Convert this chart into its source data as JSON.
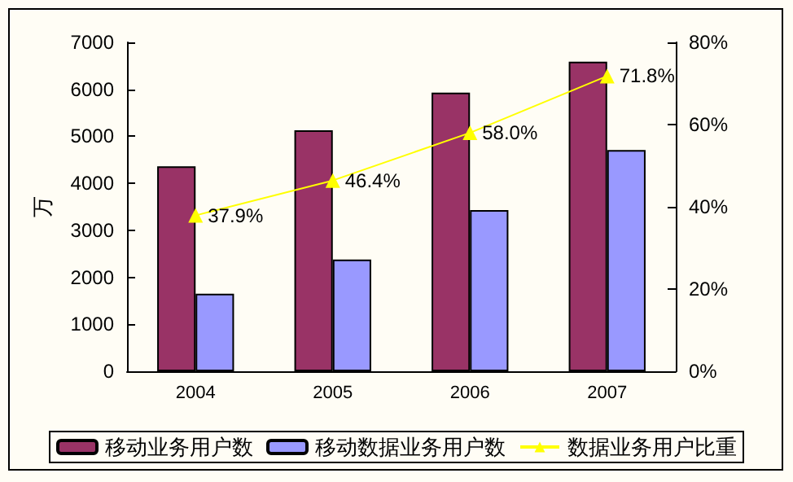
{
  "chart_data": {
    "type": "bar",
    "categories": [
      "2004",
      "2005",
      "2006",
      "2007"
    ],
    "ylabel": "万",
    "ylim": [
      0,
      7000
    ],
    "yticks": [
      0,
      1000,
      2000,
      3000,
      4000,
      5000,
      6000,
      7000
    ],
    "y2lim": [
      0,
      80
    ],
    "y2ticks": [
      {
        "value": 0,
        "label": "0%"
      },
      {
        "value": 20,
        "label": "20%"
      },
      {
        "value": 40,
        "label": "40%"
      },
      {
        "value": 60,
        "label": "60%"
      },
      {
        "value": 80,
        "label": "80%"
      }
    ],
    "series": [
      {
        "name": "移动业务用户数",
        "color": "#993366",
        "values": [
          4360,
          5130,
          5930,
          6590
        ]
      },
      {
        "name": "移动数据业务用户数",
        "color": "#9999ff",
        "values": [
          1650,
          2380,
          3430,
          4710
        ]
      },
      {
        "name": "数据业务用户比重",
        "type": "line",
        "axis": "y2",
        "color": "#ffff00",
        "marker": "triangle",
        "values": [
          37.9,
          46.4,
          58.0,
          71.8
        ],
        "value_labels": [
          "37.9%",
          "46.4%",
          "58.0%",
          "71.8%"
        ]
      }
    ],
    "grid": false,
    "legend": "bottom"
  }
}
